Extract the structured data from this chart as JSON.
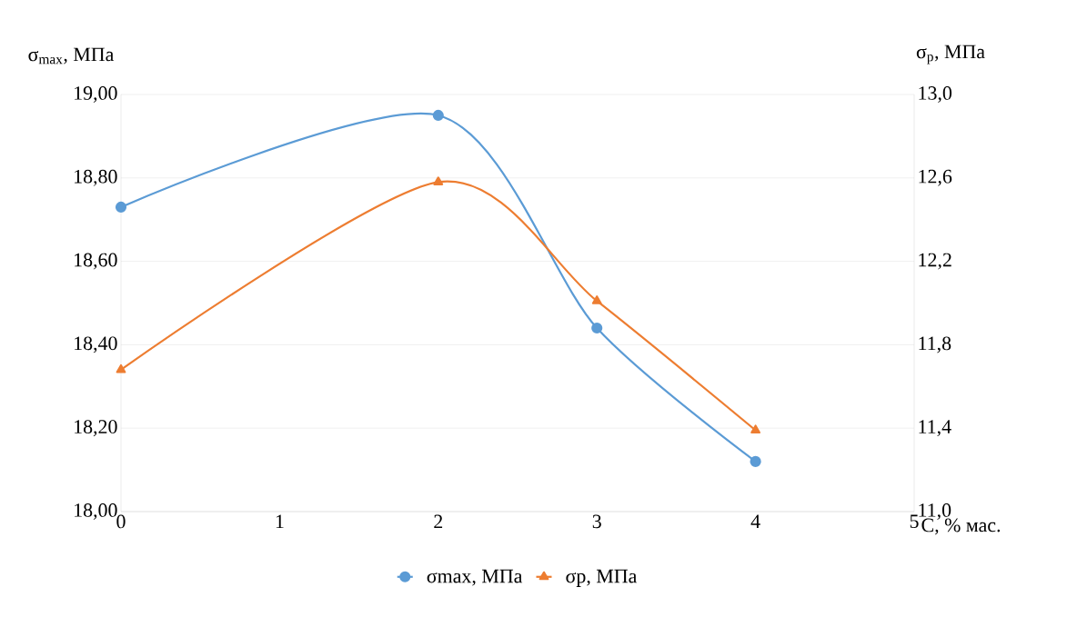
{
  "chart_data": {
    "type": "line",
    "xlabel": "C, % мас.",
    "ylabel": "σ$_{max}$, МПа",
    "y2label": "σ$_{р}$, МПа",
    "x": [
      0,
      2,
      3,
      4
    ],
    "xlim": [
      0,
      5
    ],
    "xticks": [
      0,
      1,
      2,
      3,
      4,
      5
    ],
    "ylim": [
      18.0,
      19.0
    ],
    "yticks": [
      {
        "value": 18.0,
        "label": "18,00"
      },
      {
        "value": 18.2,
        "label": "18,20"
      },
      {
        "value": 18.4,
        "label": "18,40"
      },
      {
        "value": 18.6,
        "label": "18,60"
      },
      {
        "value": 18.8,
        "label": "18,80"
      },
      {
        "value": 19.0,
        "label": "19,00"
      }
    ],
    "y2lim": [
      11.0,
      13.0
    ],
    "y2ticks": [
      {
        "value": 11.0,
        "label": "11,0"
      },
      {
        "value": 11.4,
        "label": "11,4"
      },
      {
        "value": 11.8,
        "label": "11,8"
      },
      {
        "value": 12.2,
        "label": "12,2"
      },
      {
        "value": 12.6,
        "label": "12,6"
      },
      {
        "value": 13.0,
        "label": "13,0"
      }
    ],
    "grid": "y",
    "legend": "bottom",
    "series": [
      {
        "name": "σmax, МПа",
        "color": "#5b9bd5",
        "marker": "circle",
        "values": [
          18.73,
          18.95,
          18.44,
          18.12
        ]
      },
      {
        "name": "σр, МПа",
        "color": "#ed7d31",
        "marker": "triangle",
        "axis": "y2",
        "values": [
          11.68,
          12.58,
          12.01,
          11.39
        ]
      }
    ]
  }
}
